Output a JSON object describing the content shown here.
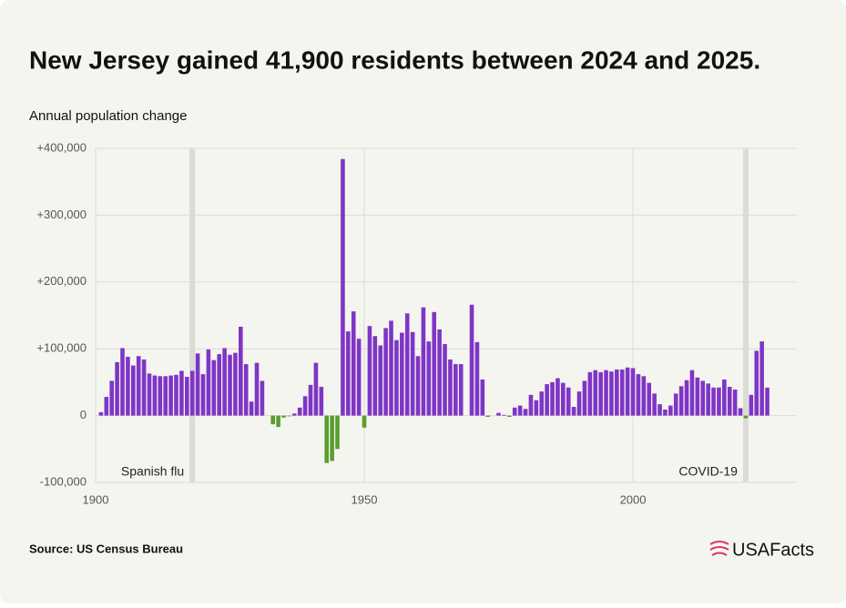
{
  "chart_data": {
    "type": "bar",
    "title": "New Jersey gained 41,900 residents between 2024 and 2025.",
    "subtitle": "Annual population change",
    "x": [
      1901,
      1902,
      1903,
      1904,
      1905,
      1906,
      1907,
      1908,
      1909,
      1910,
      1911,
      1912,
      1913,
      1914,
      1915,
      1916,
      1917,
      1918,
      1919,
      1920,
      1921,
      1922,
      1923,
      1924,
      1925,
      1926,
      1927,
      1928,
      1929,
      1930,
      1931,
      1932,
      1933,
      1934,
      1935,
      1936,
      1937,
      1938,
      1939,
      1940,
      1941,
      1942,
      1943,
      1944,
      1945,
      1946,
      1947,
      1948,
      1949,
      1950,
      1951,
      1952,
      1953,
      1954,
      1955,
      1956,
      1957,
      1958,
      1959,
      1960,
      1961,
      1962,
      1963,
      1964,
      1965,
      1966,
      1967,
      1968,
      1969,
      1970,
      1971,
      1972,
      1973,
      1974,
      1975,
      1976,
      1977,
      1978,
      1979,
      1980,
      1981,
      1982,
      1983,
      1984,
      1985,
      1986,
      1987,
      1988,
      1989,
      1990,
      1991,
      1992,
      1993,
      1994,
      1995,
      1996,
      1997,
      1998,
      1999,
      2000,
      2001,
      2002,
      2003,
      2004,
      2005,
      2006,
      2007,
      2008,
      2009,
      2010,
      2011,
      2012,
      2013,
      2014,
      2015,
      2016,
      2017,
      2018,
      2019,
      2020,
      2021,
      2022,
      2023,
      2024,
      2025
    ],
    "values": [
      5000,
      28000,
      52000,
      80000,
      101000,
      88000,
      75000,
      89000,
      84000,
      63000,
      60000,
      59000,
      59000,
      60000,
      61000,
      67000,
      58000,
      67000,
      93000,
      62000,
      99000,
      83000,
      92000,
      101000,
      91000,
      94000,
      133000,
      77000,
      21000,
      79000,
      52000,
      null,
      -13000,
      -17000,
      -3000,
      -1000,
      3000,
      12000,
      29000,
      46000,
      79000,
      43000,
      -71000,
      -68000,
      -50000,
      384000,
      126000,
      156000,
      115000,
      -18000,
      134000,
      119000,
      105000,
      131000,
      142000,
      113000,
      124000,
      153000,
      125000,
      89000,
      162000,
      111000,
      155000,
      129000,
      107000,
      84000,
      77000,
      77000,
      null,
      166000,
      110000,
      54000,
      -2000,
      null,
      4000,
      1000,
      -2000,
      12000,
      15000,
      10000,
      31000,
      23000,
      36000,
      47000,
      50000,
      56000,
      49000,
      42000,
      13000,
      36000,
      52000,
      65000,
      68000,
      65000,
      68000,
      66000,
      69000,
      69000,
      72000,
      71000,
      62000,
      59000,
      49000,
      33000,
      17000,
      9000,
      15000,
      33000,
      44000,
      53000,
      68000,
      57000,
      52000,
      48000,
      42000,
      42000,
      54000,
      43000,
      39000,
      11000,
      -4000,
      31000,
      97000,
      111000,
      41900
    ],
    "positive_color": "#7f35c6",
    "negative_color": "#5a9e2e",
    "xlim": [
      1900,
      2030.5
    ],
    "ylim": [
      -100000,
      400000
    ],
    "xticks": [
      1900,
      1950,
      2000
    ],
    "yticks": [
      {
        "value": -100000,
        "label": "-100,000"
      },
      0,
      {
        "value": 100000,
        "label": "+100,000"
      },
      {
        "value": 200000,
        "label": "+200,000"
      },
      {
        "value": 300000,
        "label": "+300,000"
      },
      {
        "value": 400000,
        "label": "+400,000"
      }
    ],
    "grid": true,
    "annotations": [
      {
        "label": "Spanish flu",
        "x": 1918
      },
      {
        "label": "COVID-19",
        "x": 2021
      }
    ]
  },
  "footer": {
    "source": "Source: US Census Bureau",
    "brand": "USAFacts"
  }
}
